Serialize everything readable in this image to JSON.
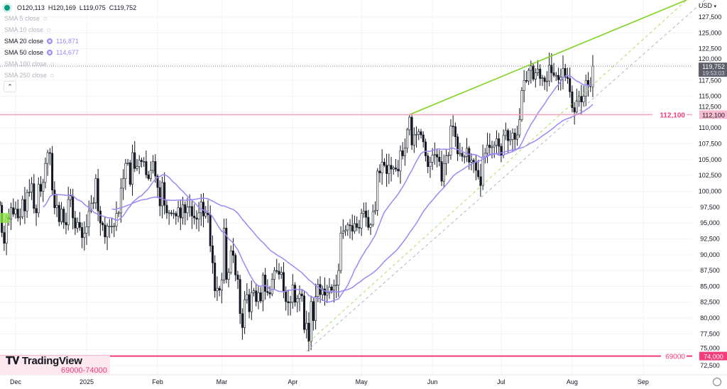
{
  "legend": {
    "ohlc": "O120,113  H120,169  L119,075  C119,752",
    "indicators": [
      {
        "label": "SMA 5 close",
        "visible": false,
        "value": ""
      },
      {
        "label": "SMA 10 close",
        "visible": false,
        "value": ""
      },
      {
        "label": "SMA 20 close",
        "visible": true,
        "value": "116,871"
      },
      {
        "label": "SMA 50 close",
        "visible": true,
        "value": "114,677"
      },
      {
        "label": "SMA 100 close",
        "visible": false,
        "value": ""
      },
      {
        "label": "SMA 250 close",
        "visible": false,
        "value": ""
      }
    ],
    "collapse_icon": "chevron-up"
  },
  "currency": "USD",
  "logo": "TradingView",
  "zone_label": "69000-74000",
  "price_label": {
    "price": "119,752",
    "countdown": "19:53:03"
  },
  "colors": {
    "sma": "#9b87f5",
    "trend": "#7ed321",
    "trend_dash_gray": "#b2b5be",
    "level": "#f23d7a",
    "up": "#ffffff",
    "down": "#131722"
  },
  "chart_data": {
    "type": "candlestick",
    "start_date": "2024-11-24",
    "closes": [
      97800,
      93500,
      91800,
      95900,
      95600,
      97400,
      96400,
      97200,
      95800,
      96000,
      98700,
      96900,
      99800,
      99900,
      101200,
      97300,
      96600,
      101100,
      100000,
      101400,
      104400,
      106100,
      106000,
      100200,
      97400,
      97800,
      95200,
      97200,
      95100,
      94700,
      98700,
      99300,
      95800,
      94200,
      95100,
      94300,
      92700,
      93400,
      94400,
      96900,
      98100,
      98200,
      102000,
      96900,
      95000,
      94700,
      92800,
      94500,
      94500,
      94500,
      94500,
      96500,
      96600,
      100500,
      102000,
      104400,
      104500,
      101100,
      106100,
      103600,
      103900,
      104900,
      104700,
      104700,
      102600,
      102000,
      103300,
      104700,
      102400,
      100600,
      97700,
      101400,
      97800,
      96600,
      96600,
      96500,
      96500,
      96100,
      97400,
      95800,
      97900,
      96600,
      97500,
      97600,
      96100,
      95800,
      95600,
      96600,
      98300,
      96100,
      96600,
      96300,
      91400,
      88700,
      84300,
      84700,
      84400,
      86000,
      94200,
      86100,
      87200,
      90600,
      89900,
      86800,
      86100,
      80700,
      78500,
      82900,
      83700,
      81000,
      84000,
      84300,
      82600,
      84000,
      82700,
      86800,
      84200,
      84000,
      83800,
      86100,
      87500,
      87400,
      86900,
      87200,
      84300,
      82600,
      82400,
      82500,
      85200,
      82500,
      83100,
      83800,
      83500,
      78200,
      79200,
      76300,
      82600,
      79600,
      83400,
      85300,
      83700,
      84600,
      83600,
      84000,
      84900,
      84400,
      85100,
      85200,
      87500,
      93400,
      93700,
      93900,
      94700,
      94600,
      93700,
      94900,
      94300,
      94200,
      96500,
      96900,
      95900,
      94300,
      94700,
      96800,
      97000,
      103200,
      102900,
      104600,
      104100,
      102800,
      104100,
      103500,
      103700,
      103500,
      103200,
      106400,
      105600,
      106800,
      109700,
      111700,
      107300,
      108900,
      109000,
      109400,
      108900,
      107800,
      105600,
      103900,
      104600,
      105700,
      105800,
      105400,
      104700,
      101600,
      104400,
      105600,
      105700,
      110300,
      110200,
      108600,
      105900,
      106000,
      105500,
      105500,
      106800,
      104600,
      104900,
      104600,
      103300,
      102300,
      100900,
      105400,
      106000,
      107300,
      106900,
      107000,
      107300,
      108300,
      107100,
      105700,
      108800,
      109600,
      108000,
      108200,
      109200,
      108200,
      108900,
      111300,
      115900,
      117500,
      117400,
      119100,
      119800,
      117700,
      118700,
      119300,
      117800,
      117900,
      117300,
      117400,
      119900,
      118700,
      118300,
      118300,
      117600,
      118000,
      119400,
      118000,
      117800,
      115700,
      113200,
      112500,
      114200,
      115000,
      114100,
      115000,
      117500,
      116700,
      116500,
      119752
    ],
    "sma_periods": [
      20,
      50
    ],
    "y_ticks": [
      "72,500",
      "75,000",
      "77,500",
      "80,000",
      "82,500",
      "85,000",
      "87,500",
      "90,000",
      "92,500",
      "95,000",
      "97,500",
      "100,000",
      "102,500",
      "105,000",
      "107,500",
      "110,000",
      "112,500",
      "115,000",
      "117,500",
      "120,000",
      "122,500",
      "125,000",
      "127,500"
    ],
    "ylim": [
      72500,
      127500
    ],
    "x_ticks": [
      {
        "label": "Dec",
        "date": "2024-12-01"
      },
      {
        "label": "2025",
        "date": "2025-01-01"
      },
      {
        "label": "Feb",
        "date": "2025-02-01"
      },
      {
        "label": "Mar",
        "date": "2025-03-01"
      },
      {
        "label": "Apr",
        "date": "2025-04-01"
      },
      {
        "label": "May",
        "date": "2025-05-01"
      },
      {
        "label": "Jun",
        "date": "2025-06-01"
      },
      {
        "label": "Jul",
        "date": "2025-07-01"
      },
      {
        "label": "Aug",
        "date": "2025-08-01"
      },
      {
        "label": "Sep",
        "date": "2025-09-01"
      }
    ],
    "horizontal_levels": [
      {
        "price": 112100,
        "label": "112,100",
        "axis_label": "112,100",
        "style": "light"
      },
      {
        "price": 74000,
        "label": "69000",
        "axis_label": "74,000",
        "style": "solid"
      }
    ],
    "trend_lines": [
      {
        "from": [
          "2025-05-22",
          112100
        ],
        "to": [
          "2025-09-20",
          130200
        ],
        "style": "solid",
        "color": "#7ed321"
      },
      {
        "from": [
          "2025-04-08",
          76200
        ],
        "to": [
          "2025-09-20",
          130200
        ],
        "style": "dashed",
        "color": "#a8e063"
      },
      {
        "from": [
          "2025-04-07",
          74750
        ],
        "to": [
          "2025-09-28",
          130200
        ],
        "style": "dashed",
        "color": "#b2b5be"
      }
    ]
  }
}
